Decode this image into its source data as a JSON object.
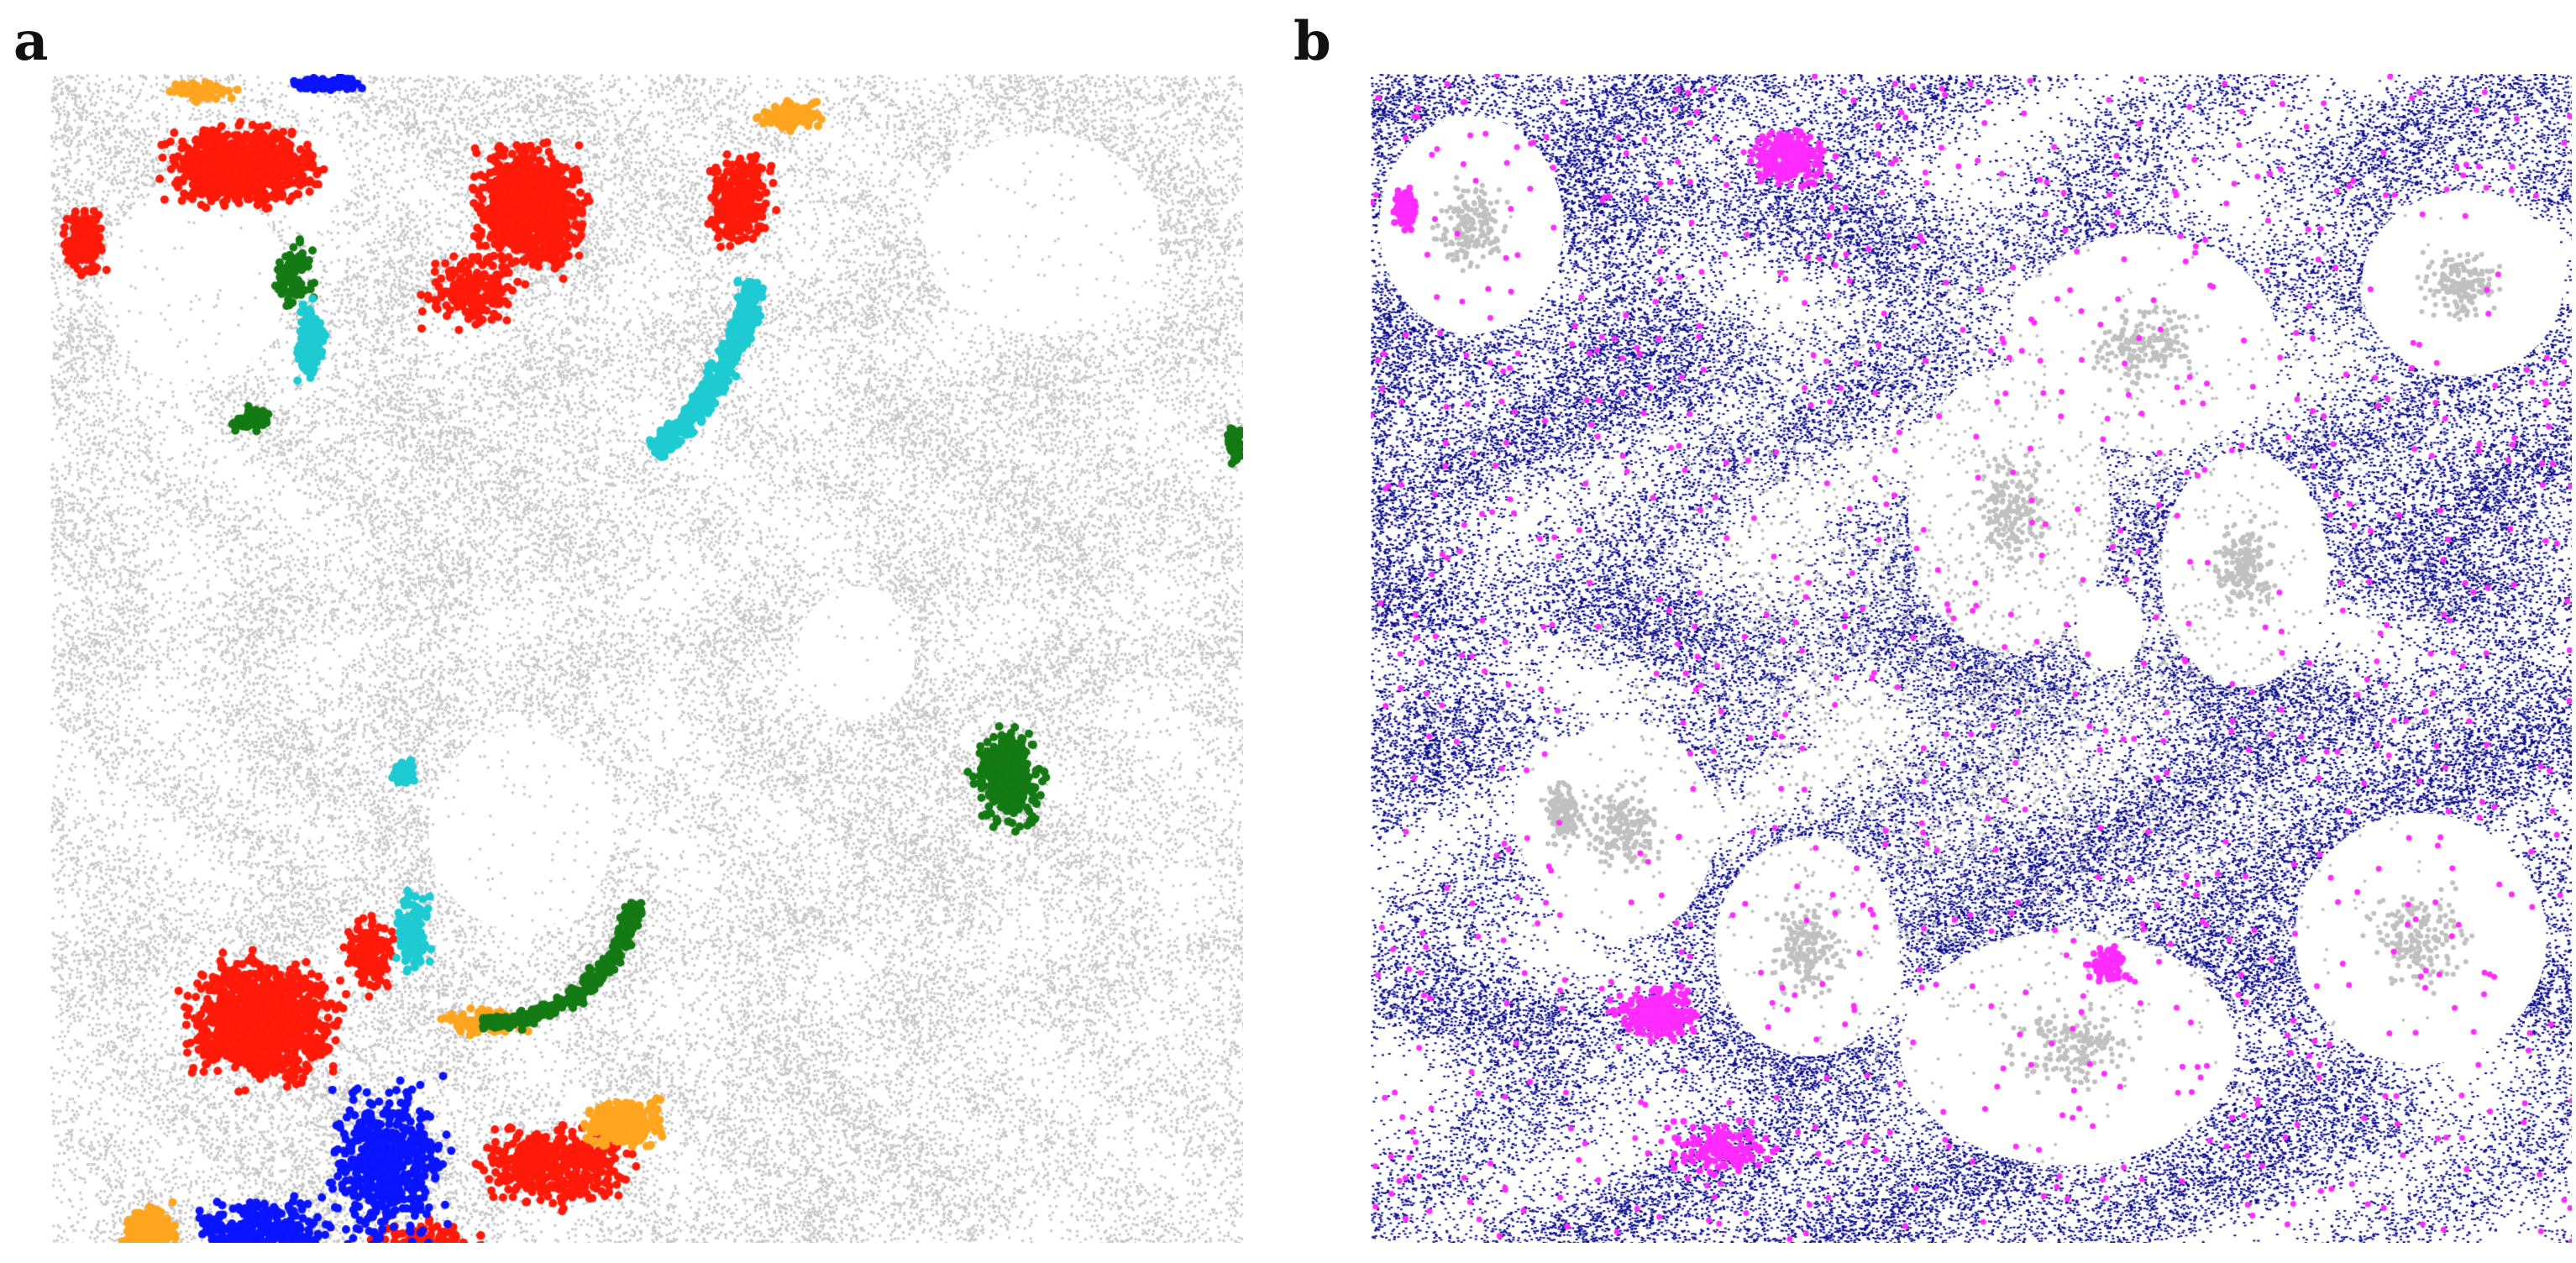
{
  "panels": [
    {
      "label": "a",
      "background_color": "#c8c8c8",
      "class_colors": {
        "red": "#ff1a0a",
        "blue": "#0a14ff",
        "orange": "#ffa51f",
        "green": "#147a14",
        "cyan": "#1ecbd2"
      }
    },
    {
      "label": "b",
      "class_colors": {
        "navy": "#0b0c8c",
        "magenta": "#ff2bff",
        "gray": "#c0c0c0"
      }
    }
  ]
}
